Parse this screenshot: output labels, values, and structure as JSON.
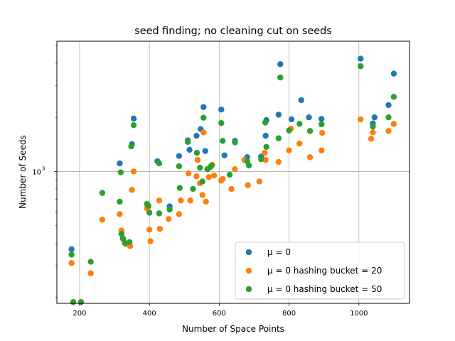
{
  "chart_data": {
    "type": "scatter",
    "title": "seed finding; no cleaning cut on seeds",
    "xlabel": "Number of Space Points",
    "ylabel": "Number of Seeds",
    "xlim": [
      135,
      1145
    ],
    "ylim": [
      185,
      5300
    ],
    "yscale": "log",
    "grid": true,
    "legend_position": "lower-right",
    "x_ticks": [
      {
        "value": 200,
        "label": "200"
      },
      {
        "value": 400,
        "label": "400"
      },
      {
        "value": 600,
        "label": "600"
      },
      {
        "value": 800,
        "label": "800"
      },
      {
        "value": 1000,
        "label": "1000"
      }
    ],
    "y_ticks": [
      {
        "value": 1000,
        "label": "10",
        "sup": "3"
      }
    ],
    "series": [
      {
        "name": "μ = 0",
        "color": "#1f77b4",
        "points": [
          [
            177,
            370
          ],
          [
            315,
            1110
          ],
          [
            355,
            1970
          ],
          [
            350,
            1420
          ],
          [
            423,
            1140
          ],
          [
            458,
            640
          ],
          [
            485,
            1220
          ],
          [
            510,
            1490
          ],
          [
            515,
            1320
          ],
          [
            535,
            1580
          ],
          [
            547,
            1720
          ],
          [
            555,
            2280
          ],
          [
            560,
            1300
          ],
          [
            606,
            2210
          ],
          [
            615,
            1230
          ],
          [
            645,
            1480
          ],
          [
            680,
            1200
          ],
          [
            720,
            1210
          ],
          [
            735,
            1930
          ],
          [
            733,
            1580
          ],
          [
            770,
            2070
          ],
          [
            775,
            3950
          ],
          [
            807,
            1950
          ],
          [
            835,
            2490
          ],
          [
            857,
            2000
          ],
          [
            893,
            1960
          ],
          [
            1005,
            4240
          ],
          [
            1040,
            1850
          ],
          [
            1045,
            2000
          ],
          [
            1085,
            2340
          ],
          [
            1100,
            3500
          ]
        ]
      },
      {
        "name": "μ = 0 hashing bucket = 20",
        "color": "#ff7f0e",
        "points": [
          [
            177,
            310
          ],
          [
            182,
            188
          ],
          [
            204,
            188
          ],
          [
            232,
            272
          ],
          [
            265,
            540
          ],
          [
            315,
            580
          ],
          [
            320,
            470
          ],
          [
            325,
            420
          ],
          [
            333,
            395
          ],
          [
            345,
            385
          ],
          [
            355,
            1000
          ],
          [
            350,
            790
          ],
          [
            393,
            625
          ],
          [
            397,
            635
          ],
          [
            400,
            475
          ],
          [
            403,
            410
          ],
          [
            428,
            690
          ],
          [
            430,
            480
          ],
          [
            455,
            545
          ],
          [
            485,
            580
          ],
          [
            490,
            690
          ],
          [
            512,
            975
          ],
          [
            517,
            690
          ],
          [
            535,
            940
          ],
          [
            538,
            1160
          ],
          [
            545,
            860
          ],
          [
            552,
            740
          ],
          [
            555,
            1650
          ],
          [
            562,
            680
          ],
          [
            570,
            930
          ],
          [
            580,
            1090
          ],
          [
            585,
            950
          ],
          [
            606,
            890
          ],
          [
            610,
            910
          ],
          [
            635,
            800
          ],
          [
            645,
            1030
          ],
          [
            672,
            1160
          ],
          [
            682,
            840
          ],
          [
            715,
            880
          ],
          [
            730,
            1270
          ],
          [
            733,
            1160
          ],
          [
            770,
            1130
          ],
          [
            800,
            1310
          ],
          [
            805,
            1730
          ],
          [
            830,
            1430
          ],
          [
            860,
            1200
          ],
          [
            893,
            1310
          ],
          [
            895,
            1640
          ],
          [
            1005,
            1950
          ],
          [
            1035,
            1520
          ],
          [
            1040,
            1650
          ],
          [
            1085,
            1680
          ],
          [
            1100,
            1840
          ]
        ]
      },
      {
        "name": "μ = 0 hashing bucket = 50",
        "color": "#2ca02c",
        "points": [
          [
            177,
            345
          ],
          [
            182,
            188
          ],
          [
            204,
            188
          ],
          [
            232,
            315
          ],
          [
            265,
            760
          ],
          [
            315,
            680
          ],
          [
            318,
            990
          ],
          [
            320,
            450
          ],
          [
            324,
            425
          ],
          [
            330,
            400
          ],
          [
            343,
            405
          ],
          [
            348,
            1380
          ],
          [
            355,
            1810
          ],
          [
            393,
            660
          ],
          [
            397,
            645
          ],
          [
            400,
            590
          ],
          [
            428,
            585
          ],
          [
            428,
            1110
          ],
          [
            458,
            615
          ],
          [
            485,
            1070
          ],
          [
            487,
            810
          ],
          [
            510,
            1460
          ],
          [
            525,
            800
          ],
          [
            536,
            1270
          ],
          [
            545,
            1050
          ],
          [
            552,
            880
          ],
          [
            555,
            1990
          ],
          [
            566,
            1030
          ],
          [
            575,
            1060
          ],
          [
            578,
            1080
          ],
          [
            606,
            1860
          ],
          [
            610,
            1480
          ],
          [
            630,
            960
          ],
          [
            645,
            1450
          ],
          [
            680,
            1140
          ],
          [
            685,
            1080
          ],
          [
            720,
            1170
          ],
          [
            732,
            1870
          ],
          [
            735,
            1370
          ],
          [
            770,
            1530
          ],
          [
            775,
            3330
          ],
          [
            800,
            1690
          ],
          [
            830,
            1840
          ],
          [
            860,
            1680
          ],
          [
            893,
            1830
          ],
          [
            1005,
            3850
          ],
          [
            1040,
            1780
          ],
          [
            1085,
            2000
          ],
          [
            1100,
            2600
          ]
        ]
      }
    ]
  }
}
